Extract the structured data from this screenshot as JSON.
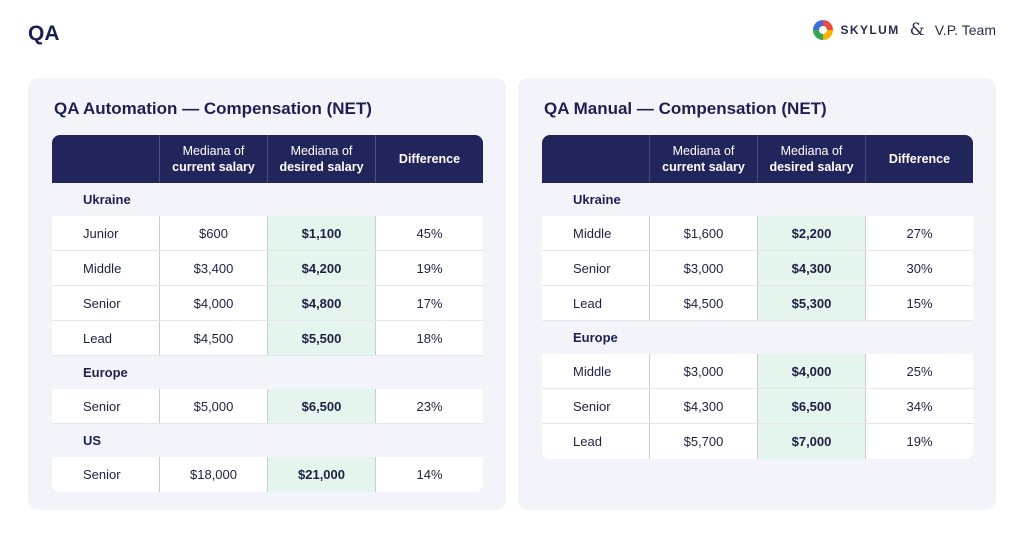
{
  "page_title": "QA",
  "brand": {
    "logo_icon": "skylum-logo-icon",
    "skylum": "SKYLUM",
    "amp": "&",
    "vp": "V.P. Team"
  },
  "columns": {
    "current_l1": "Mediana of",
    "current_l2": "current salary",
    "desired_l1": "Mediana of",
    "desired_l2": "desired salary",
    "difference": "Difference"
  },
  "automation": {
    "title": "QA Automation — Compensation (NET)",
    "sections": [
      {
        "name": "Ukraine",
        "rows": [
          {
            "role": "Junior",
            "current": "$600",
            "desired": "$1,100",
            "diff": "45%"
          },
          {
            "role": "Middle",
            "current": "$3,400",
            "desired": "$4,200",
            "diff": "19%"
          },
          {
            "role": "Senior",
            "current": "$4,000",
            "desired": "$4,800",
            "diff": "17%"
          },
          {
            "role": "Lead",
            "current": "$4,500",
            "desired": "$5,500",
            "diff": "18%"
          }
        ]
      },
      {
        "name": "Europe",
        "rows": [
          {
            "role": "Senior",
            "current": "$5,000",
            "desired": "$6,500",
            "diff": "23%"
          }
        ]
      },
      {
        "name": "US",
        "rows": [
          {
            "role": "Senior",
            "current": "$18,000",
            "desired": "$21,000",
            "diff": "14%"
          }
        ]
      }
    ]
  },
  "manual": {
    "title": "QA Manual — Compensation (NET)",
    "sections": [
      {
        "name": "Ukraine",
        "rows": [
          {
            "role": "Middle",
            "current": "$1,600",
            "desired": "$2,200",
            "diff": "27%"
          },
          {
            "role": "Senior",
            "current": "$3,000",
            "desired": "$4,300",
            "diff": "30%"
          },
          {
            "role": "Lead",
            "current": "$4,500",
            "desired": "$5,300",
            "diff": "15%"
          }
        ]
      },
      {
        "name": "Europe",
        "rows": [
          {
            "role": "Middle",
            "current": "$3,000",
            "desired": "$4,000",
            "diff": "25%"
          },
          {
            "role": "Senior",
            "current": "$4,300",
            "desired": "$6,500",
            "diff": "34%"
          },
          {
            "role": "Lead",
            "current": "$5,700",
            "desired": "$7,000",
            "diff": "19%"
          }
        ]
      }
    ]
  }
}
